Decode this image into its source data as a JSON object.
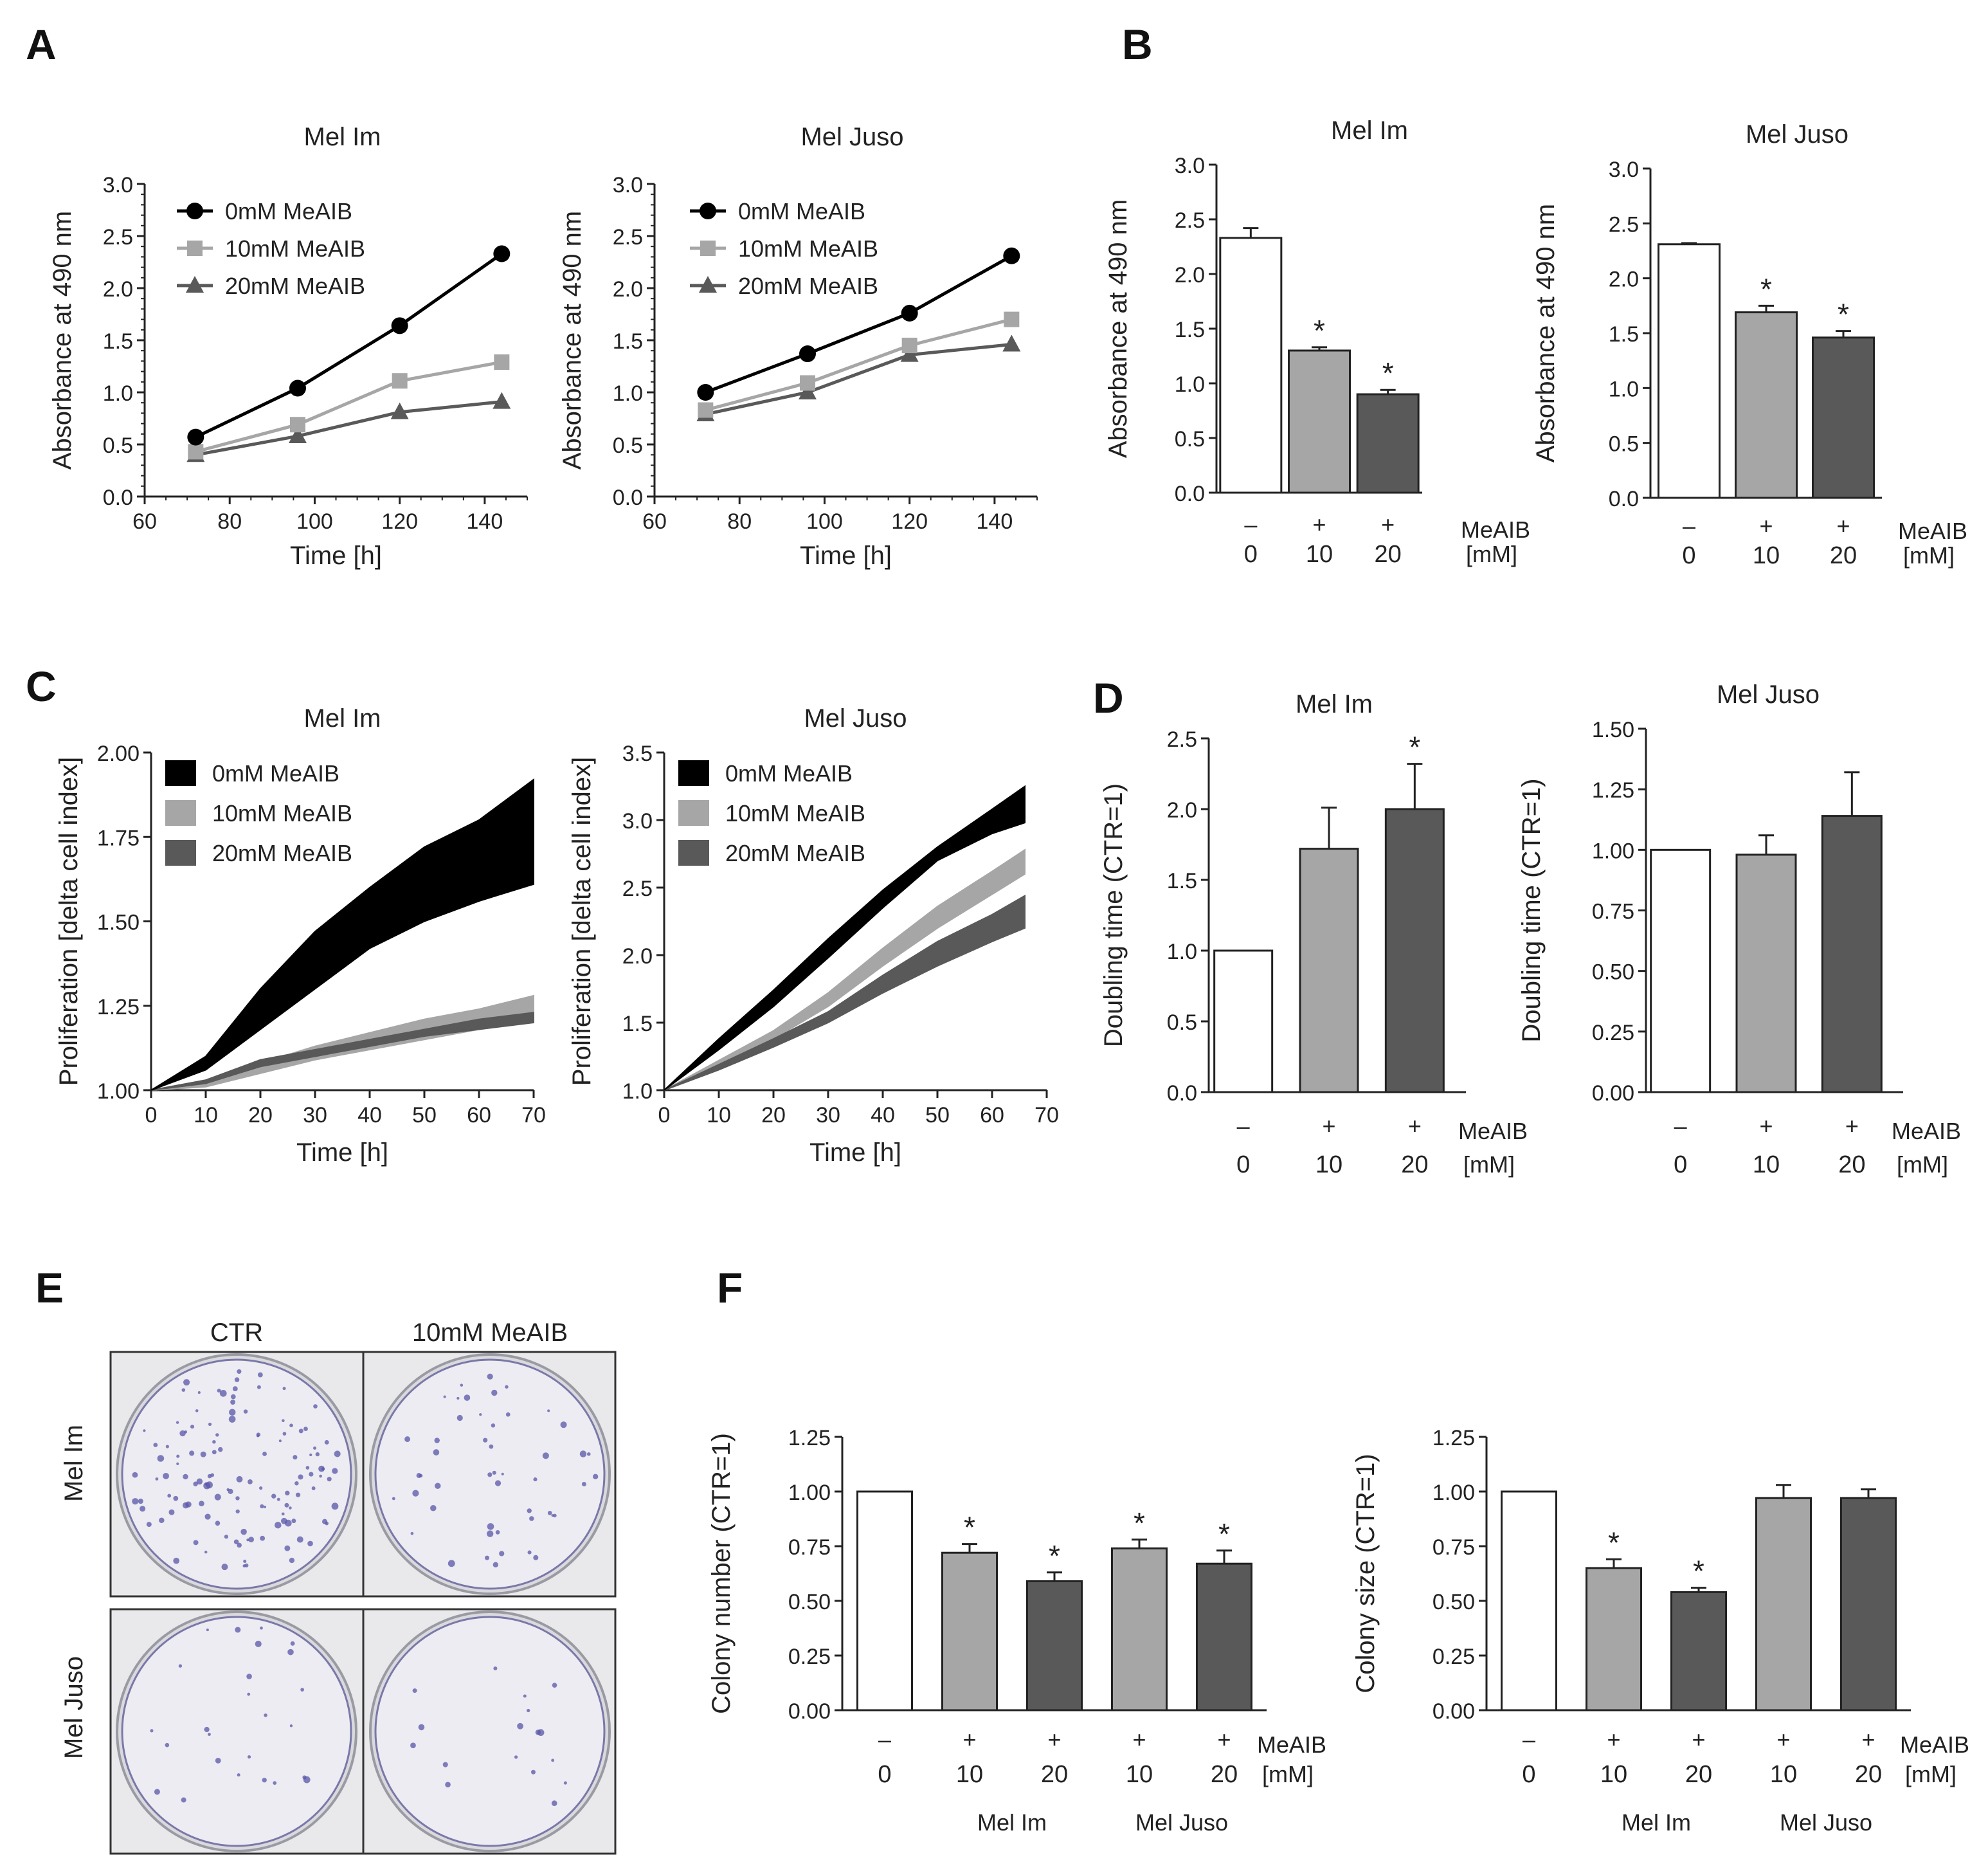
{
  "figure": {
    "panel_letters": [
      "A",
      "B",
      "C",
      "D",
      "E",
      "F"
    ],
    "colors": {
      "black": "#000000",
      "light_gray": "#a6a6a6",
      "dark_gray": "#595959",
      "mid_gray": "#8c8c8c",
      "white": "#ffffff",
      "stain": "#5a55a8"
    }
  },
  "chart_data": [
    {
      "id": "A1",
      "type": "line",
      "panel": "A",
      "title": "Mel Im",
      "xlabel": "Time  [h]",
      "ylabel": "Absorbance at 490 nm",
      "xlim": [
        60,
        150
      ],
      "ylim": [
        0,
        3.0
      ],
      "xticks": [
        60,
        80,
        100,
        120,
        140
      ],
      "xtick_labels": [
        "60",
        "80",
        "100",
        "120",
        "140"
      ],
      "yticks": [
        0,
        0.5,
        1,
        1.5,
        2,
        2.5,
        3
      ],
      "ytick_labels": [
        "0.0",
        "0.5",
        "1.0",
        "1.5",
        "2.0",
        "2.5",
        "3.0"
      ],
      "x": [
        72,
        96,
        120,
        144
      ],
      "series": [
        {
          "name": "0mM MeAIB",
          "marker": "circle",
          "color": "#000000",
          "values": [
            0.57,
            1.04,
            1.64,
            2.33
          ],
          "errors": [
            0.02,
            0.03,
            0.03,
            0.08
          ]
        },
        {
          "name": "10mM MeAIB",
          "marker": "square",
          "color": "#a6a6a6",
          "values": [
            0.43,
            0.69,
            1.11,
            1.29
          ],
          "errors": [
            0.02,
            0.02,
            0.03,
            0.03
          ]
        },
        {
          "name": "20mM MeAIB",
          "marker": "triangle",
          "color": "#595959",
          "values": [
            0.4,
            0.58,
            0.81,
            0.91
          ],
          "errors": [
            0.02,
            0.02,
            0.02,
            0.02
          ]
        }
      ]
    },
    {
      "id": "A2",
      "type": "line",
      "panel": "A",
      "title": "Mel Juso",
      "xlabel": "Time  [h]",
      "ylabel": "Absorbance at 490 nm",
      "xlim": [
        60,
        150
      ],
      "ylim": [
        0,
        3.0
      ],
      "xticks": [
        60,
        80,
        100,
        120,
        140
      ],
      "xtick_labels": [
        "60",
        "80",
        "100",
        "120",
        "140"
      ],
      "yticks": [
        0,
        0.5,
        1,
        1.5,
        2,
        2.5,
        3
      ],
      "ytick_labels": [
        "0.0",
        "0.5",
        "1.0",
        "1.5",
        "2.0",
        "2.5",
        "3.0"
      ],
      "x": [
        72,
        96,
        120,
        144
      ],
      "series": [
        {
          "name": "0mM MeAIB",
          "marker": "circle",
          "color": "#000000",
          "values": [
            1.0,
            1.37,
            1.76,
            2.31
          ],
          "errors": [
            0.02,
            0.02,
            0.02,
            0.03
          ]
        },
        {
          "name": "10mM MeAIB",
          "marker": "square",
          "color": "#a6a6a6",
          "values": [
            0.83,
            1.09,
            1.45,
            1.7
          ],
          "errors": [
            0.02,
            0.02,
            0.02,
            0.03
          ]
        },
        {
          "name": "20mM MeAIB",
          "marker": "triangle",
          "color": "#595959",
          "values": [
            0.79,
            1.0,
            1.36,
            1.46
          ],
          "errors": [
            0.02,
            0.02,
            0.02,
            0.03
          ]
        }
      ]
    },
    {
      "id": "B1",
      "type": "bar",
      "panel": "B",
      "title": "Mel Im",
      "ylabel": "Absorbance at 490 nm",
      "ylim": [
        0,
        3.0
      ],
      "yticks": [
        0,
        0.5,
        1,
        1.5,
        2,
        2.5,
        3
      ],
      "ytick_labels": [
        "0.0",
        "0.5",
        "1.0",
        "1.5",
        "2.0",
        "2.5",
        "3.0"
      ],
      "treatment_signs": [
        "–",
        "+",
        "+"
      ],
      "dose_labels": [
        "0",
        "10",
        "20"
      ],
      "treatment_label": "MeAIB",
      "unit_label": "[mM]",
      "values": [
        2.33,
        1.3,
        0.9
      ],
      "errors": [
        0.09,
        0.03,
        0.04
      ],
      "fills": [
        "#ffffff",
        "#a6a6a6",
        "#595959"
      ],
      "significant": [
        false,
        true,
        true
      ]
    },
    {
      "id": "B2",
      "type": "bar",
      "panel": "B",
      "title": "Mel Juso",
      "ylabel": "Absorbance at 490 nm",
      "ylim": [
        0,
        3.0
      ],
      "yticks": [
        0,
        0.5,
        1,
        1.5,
        2,
        2.5,
        3
      ],
      "ytick_labels": [
        "0.0",
        "0.5",
        "1.0",
        "1.5",
        "2.0",
        "2.5",
        "3.0"
      ],
      "treatment_signs": [
        "–",
        "+",
        "+"
      ],
      "dose_labels": [
        "0",
        "10",
        "20"
      ],
      "treatment_label": "MeAIB",
      "unit_label": "[mM]",
      "values": [
        2.31,
        1.69,
        1.46
      ],
      "errors": [
        0.01,
        0.06,
        0.06
      ],
      "fills": [
        "#ffffff",
        "#a6a6a6",
        "#595959"
      ],
      "significant": [
        false,
        true,
        true
      ]
    },
    {
      "id": "C1",
      "type": "area",
      "panel": "C",
      "title": "Mel Im",
      "xlabel": "Time  [h]",
      "ylabel": "Proliferation [delta cell index]",
      "xlim": [
        0,
        70
      ],
      "ylim": [
        1.0,
        2.0
      ],
      "xticks": [
        0,
        10,
        20,
        30,
        40,
        50,
        60,
        70
      ],
      "xtick_labels": [
        "0",
        "10",
        "20",
        "30",
        "40",
        "50",
        "60",
        "70"
      ],
      "yticks": [
        1.0,
        1.25,
        1.5,
        1.75,
        2.0
      ],
      "ytick_labels": [
        "1.00",
        "1.25",
        "1.50",
        "1.75",
        "2.00"
      ],
      "x": [
        0,
        10,
        20,
        30,
        40,
        50,
        60,
        70
      ],
      "series": [
        {
          "name": "0mM MeAIB",
          "color": "#000000",
          "lower": [
            1.0,
            1.06,
            1.18,
            1.3,
            1.42,
            1.5,
            1.56,
            1.61
          ],
          "upper": [
            1.0,
            1.1,
            1.3,
            1.47,
            1.6,
            1.72,
            1.8,
            1.92
          ]
        },
        {
          "name": "10mM MeAIB",
          "color": "#a6a6a6",
          "lower": [
            1.0,
            1.01,
            1.05,
            1.09,
            1.12,
            1.15,
            1.18,
            1.21
          ],
          "upper": [
            1.0,
            1.03,
            1.08,
            1.13,
            1.17,
            1.21,
            1.24,
            1.28
          ]
        },
        {
          "name": "20mM MeAIB",
          "color": "#595959",
          "lower": [
            1.0,
            1.02,
            1.07,
            1.1,
            1.13,
            1.16,
            1.18,
            1.2
          ],
          "upper": [
            1.0,
            1.03,
            1.09,
            1.12,
            1.15,
            1.18,
            1.21,
            1.23
          ]
        }
      ]
    },
    {
      "id": "C2",
      "type": "area",
      "panel": "C",
      "title": "Mel Juso",
      "xlabel": "Time  [h]",
      "ylabel": "Proliferation [delta cell index]",
      "xlim": [
        0,
        70
      ],
      "ylim": [
        1.0,
        3.5
      ],
      "xticks": [
        0,
        10,
        20,
        30,
        40,
        50,
        60,
        70
      ],
      "xtick_labels": [
        "0",
        "10",
        "20",
        "30",
        "40",
        "50",
        "60",
        "70"
      ],
      "yticks": [
        1.0,
        1.5,
        2.0,
        2.5,
        3.0,
        3.5
      ],
      "ytick_labels": [
        "1.0",
        "1.5",
        "2.0",
        "2.5",
        "3.0",
        "3.5"
      ],
      "x": [
        0,
        10,
        20,
        30,
        40,
        50,
        60,
        66
      ],
      "series": [
        {
          "name": "0mM MeAIB",
          "color": "#000000",
          "lower": [
            1.0,
            1.3,
            1.62,
            1.98,
            2.35,
            2.7,
            2.9,
            2.98
          ],
          "upper": [
            1.0,
            1.38,
            1.74,
            2.12,
            2.48,
            2.8,
            3.08,
            3.25
          ]
        },
        {
          "name": "10mM MeAIB",
          "color": "#a6a6a6",
          "lower": [
            1.0,
            1.18,
            1.38,
            1.62,
            1.92,
            2.2,
            2.45,
            2.6
          ],
          "upper": [
            1.0,
            1.22,
            1.44,
            1.72,
            2.05,
            2.36,
            2.62,
            2.78
          ]
        },
        {
          "name": "20mM MeAIB",
          "color": "#595959",
          "lower": [
            1.0,
            1.15,
            1.32,
            1.5,
            1.72,
            1.92,
            2.1,
            2.2
          ],
          "upper": [
            1.0,
            1.19,
            1.38,
            1.58,
            1.85,
            2.1,
            2.3,
            2.44
          ]
        }
      ]
    },
    {
      "id": "D1",
      "type": "bar",
      "panel": "D",
      "title": "Mel Im",
      "ylabel": "Doubling time (CTR=1)",
      "ylim": [
        0,
        2.5
      ],
      "yticks": [
        0,
        0.5,
        1,
        1.5,
        2,
        2.5
      ],
      "ytick_labels": [
        "0.0",
        "0.5",
        "1.0",
        "1.5",
        "2.0",
        "2.5"
      ],
      "treatment_signs": [
        "–",
        "+",
        "+"
      ],
      "dose_labels": [
        "0",
        "10",
        "20"
      ],
      "treatment_label": "MeAIB",
      "unit_label": "[mM]",
      "values": [
        1.0,
        1.72,
        2.0
      ],
      "errors": [
        0,
        0.29,
        0.32
      ],
      "fills": [
        "#ffffff",
        "#a6a6a6",
        "#595959"
      ],
      "significant": [
        false,
        false,
        true
      ]
    },
    {
      "id": "D2",
      "type": "bar",
      "panel": "D",
      "title": "Mel Juso",
      "ylabel": "Doubling time (CTR=1)",
      "ylim": [
        0,
        1.5
      ],
      "yticks": [
        0,
        0.25,
        0.5,
        0.75,
        1.0,
        1.25,
        1.5
      ],
      "ytick_labels": [
        "0.00",
        "0.25",
        "0.50",
        "0.75",
        "1.00",
        "1.25",
        "1.50"
      ],
      "treatment_signs": [
        "–",
        "+",
        "+"
      ],
      "dose_labels": [
        "0",
        "10",
        "20"
      ],
      "treatment_label": "MeAIB",
      "unit_label": "[mM]",
      "values": [
        1.0,
        0.98,
        1.14
      ],
      "errors": [
        0,
        0.08,
        0.18
      ],
      "fills": [
        "#ffffff",
        "#a6a6a6",
        "#595959"
      ],
      "significant": [
        false,
        false,
        false
      ]
    },
    {
      "id": "F1",
      "type": "bar",
      "panel": "F",
      "ylabel": "Colony number (CTR=1)",
      "ylim": [
        0,
        1.25
      ],
      "yticks": [
        0,
        0.25,
        0.5,
        0.75,
        1.0,
        1.25
      ],
      "ytick_labels": [
        "0.00",
        "0.25",
        "0.50",
        "0.75",
        "1.00",
        "1.25"
      ],
      "treatment_signs": [
        "–",
        "+",
        "+",
        "+",
        "+"
      ],
      "dose_labels": [
        "0",
        "10",
        "20",
        "10",
        "20"
      ],
      "treatment_label": "MeAIB",
      "unit_label": "[mM]",
      "group_labels": [
        "Mel  Im",
        "Mel  Juso"
      ],
      "values": [
        1.0,
        0.72,
        0.59,
        0.74,
        0.67
      ],
      "errors": [
        0,
        0.04,
        0.04,
        0.04,
        0.06
      ],
      "fills": [
        "#ffffff",
        "#a6a6a6",
        "#595959",
        "#a6a6a6",
        "#595959"
      ],
      "significant": [
        false,
        true,
        true,
        true,
        true
      ]
    },
    {
      "id": "F2",
      "type": "bar",
      "panel": "F",
      "ylabel": "Colony size (CTR=1)",
      "ylim": [
        0,
        1.25
      ],
      "yticks": [
        0,
        0.25,
        0.5,
        0.75,
        1.0,
        1.25
      ],
      "ytick_labels": [
        "0.00",
        "0.25",
        "0.50",
        "0.75",
        "1.00",
        "1.25"
      ],
      "treatment_signs": [
        "–",
        "+",
        "+",
        "+",
        "+"
      ],
      "dose_labels": [
        "0",
        "10",
        "20",
        "10",
        "20"
      ],
      "treatment_label": "MeAIB",
      "unit_label": "[mM]",
      "group_labels": [
        "Mel  Im",
        "Mel  Juso"
      ],
      "values": [
        1.0,
        0.65,
        0.54,
        0.97,
        0.97
      ],
      "errors": [
        0,
        0.04,
        0.02,
        0.06,
        0.04
      ],
      "fills": [
        "#ffffff",
        "#a6a6a6",
        "#595959",
        "#a6a6a6",
        "#595959"
      ],
      "significant": [
        false,
        true,
        true,
        false,
        false
      ]
    }
  ],
  "plates": {
    "column_labels": [
      "CTR",
      "10mM  MeAIB"
    ],
    "row_labels": [
      "Mel  Im",
      "Mel  Juso"
    ],
    "colony_density": [
      [
        0.9,
        0.35
      ],
      [
        0.18,
        0.12
      ]
    ]
  }
}
